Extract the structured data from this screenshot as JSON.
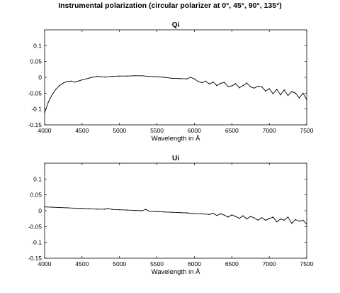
{
  "figure": {
    "suptitle": "Instrumental polarization (circular polarizer at 0°, 45°, 90°, 135°)"
  },
  "chart_data": [
    {
      "type": "line",
      "title": "Qi",
      "xlabel": "Wavelength in Å",
      "ylabel": "",
      "xlim": [
        4000,
        7500
      ],
      "ylim": [
        -0.15,
        0.15
      ],
      "xticks": [
        4000,
        4500,
        5000,
        5500,
        6000,
        6500,
        7000,
        7500
      ],
      "yticks": [
        -0.15,
        -0.1,
        -0.05,
        0,
        0.05,
        0.1
      ],
      "ytick_labels": [
        "-0.15",
        "-0.1",
        "-0.05",
        "0",
        "0.05",
        "0.1"
      ],
      "grid": false,
      "line_color": "#000000",
      "series": [
        {
          "x": [
            4000,
            4050,
            4100,
            4150,
            4200,
            4250,
            4300,
            4350,
            4400,
            4450,
            4500,
            4600,
            4700,
            4750,
            4800,
            4900,
            5000,
            5100,
            5200,
            5300,
            5400,
            5500,
            5600,
            5700,
            5800,
            5900,
            5950,
            6000,
            6050,
            6100,
            6150,
            6200,
            6250,
            6300,
            6350,
            6400,
            6450,
            6500,
            6550,
            6600,
            6650,
            6700,
            6750,
            6800,
            6850,
            6900,
            6950,
            7000,
            7050,
            7100,
            7150,
            7200,
            7250,
            7300,
            7350,
            7400,
            7450,
            7500
          ],
          "y": [
            -0.112,
            -0.078,
            -0.055,
            -0.038,
            -0.026,
            -0.018,
            -0.013,
            -0.012,
            -0.015,
            -0.012,
            -0.008,
            -0.002,
            0.003,
            0.002,
            0.001,
            0.003,
            0.004,
            0.004,
            0.005,
            0.005,
            0.003,
            0.002,
            0.0,
            -0.003,
            -0.004,
            -0.005,
            0.0,
            -0.005,
            -0.013,
            -0.017,
            -0.012,
            -0.021,
            -0.015,
            -0.026,
            -0.019,
            -0.016,
            -0.029,
            -0.027,
            -0.02,
            -0.033,
            -0.026,
            -0.018,
            -0.03,
            -0.034,
            -0.028,
            -0.03,
            -0.043,
            -0.036,
            -0.052,
            -0.038,
            -0.055,
            -0.04,
            -0.057,
            -0.045,
            -0.05,
            -0.065,
            -0.05,
            -0.07
          ]
        }
      ]
    },
    {
      "type": "line",
      "title": "Ui",
      "xlabel": "Wavelength in Å",
      "ylabel": "",
      "xlim": [
        4000,
        7500
      ],
      "ylim": [
        -0.15,
        0.15
      ],
      "xticks": [
        4000,
        4500,
        5000,
        5500,
        6000,
        6500,
        7000,
        7500
      ],
      "yticks": [
        -0.15,
        -0.1,
        -0.05,
        0,
        0.05,
        0.1
      ],
      "ytick_labels": [
        "-0.15",
        "-0.1",
        "-0.05",
        "0",
        "0.05",
        "0.1"
      ],
      "grid": false,
      "line_color": "#000000",
      "series": [
        {
          "x": [
            4000,
            4100,
            4200,
            4300,
            4400,
            4500,
            4600,
            4700,
            4800,
            4850,
            4900,
            5000,
            5100,
            5200,
            5300,
            5350,
            5400,
            5500,
            5600,
            5700,
            5800,
            5900,
            6000,
            6100,
            6200,
            6250,
            6300,
            6350,
            6400,
            6450,
            6500,
            6550,
            6600,
            6650,
            6700,
            6750,
            6800,
            6850,
            6900,
            6950,
            7000,
            7050,
            7100,
            7150,
            7200,
            7250,
            7300,
            7350,
            7400,
            7450,
            7500
          ],
          "y": [
            0.012,
            0.011,
            0.01,
            0.009,
            0.008,
            0.007,
            0.006,
            0.005,
            0.005,
            0.007,
            0.004,
            0.003,
            0.002,
            0.001,
            0.0,
            0.004,
            -0.002,
            -0.003,
            -0.004,
            -0.005,
            -0.006,
            -0.007,
            -0.009,
            -0.01,
            -0.012,
            -0.008,
            -0.015,
            -0.01,
            -0.014,
            -0.02,
            -0.013,
            -0.018,
            -0.024,
            -0.016,
            -0.026,
            -0.018,
            -0.023,
            -0.03,
            -0.022,
            -0.03,
            -0.025,
            -0.02,
            -0.035,
            -0.026,
            -0.03,
            -0.02,
            -0.04,
            -0.028,
            -0.033,
            -0.03,
            -0.042
          ]
        }
      ]
    }
  ]
}
